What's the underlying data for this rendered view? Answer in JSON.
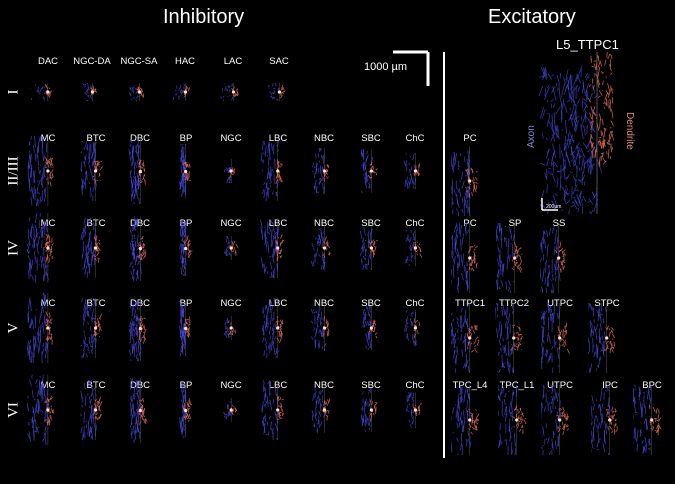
{
  "headers": {
    "inhibitory": "Inhibitory",
    "excitatory": "Excitatory"
  },
  "scale_bar": {
    "label": "1000 µm"
  },
  "highlight": {
    "title": "L5_TTPC1",
    "axon_label": "Axon",
    "dendrite_label": "Dendrite",
    "small_scale": "200µm"
  },
  "colors": {
    "axon": "#4b4be0",
    "dendrite": "#e06b5a",
    "background": "#000000",
    "text": "#ffffff"
  },
  "layers": [
    {
      "label": "I",
      "inhibitory": [
        "DAC",
        "NGC-DA",
        "NGC-SA",
        "HAC",
        "LAC",
        "SAC"
      ],
      "excitatory": []
    },
    {
      "label": "II/III",
      "inhibitory": [
        "MC",
        "BTC",
        "DBC",
        "BP",
        "NGC",
        "LBC",
        "NBC",
        "SBC",
        "ChC"
      ],
      "excitatory": [
        "PC"
      ]
    },
    {
      "label": "IV",
      "inhibitory": [
        "MC",
        "BTC",
        "DBC",
        "BP",
        "NGC",
        "LBC",
        "NBC",
        "SBC",
        "ChC"
      ],
      "excitatory": [
        "PC",
        "SP",
        "SS"
      ]
    },
    {
      "label": "V",
      "inhibitory": [
        "MC",
        "BTC",
        "DBC",
        "BP",
        "NGC",
        "LBC",
        "NBC",
        "SBC",
        "ChC"
      ],
      "excitatory": [
        "TTPC1",
        "TTPC2",
        "UTPC",
        "STPC"
      ]
    },
    {
      "label": "VI",
      "inhibitory": [
        "MC",
        "BTC",
        "DBC",
        "BP",
        "NGC",
        "LBC",
        "NBC",
        "SBC",
        "ChC"
      ],
      "excitatory": [
        "TPC_L4",
        "TPC_L1",
        "UTPC",
        "IPC",
        "BPC"
      ]
    }
  ]
}
